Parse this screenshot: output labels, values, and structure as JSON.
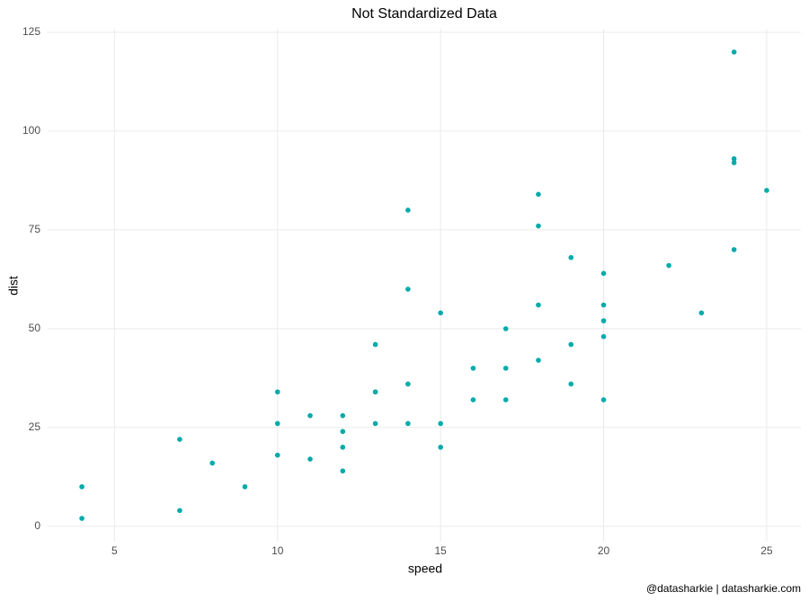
{
  "chart_data": {
    "type": "scatter",
    "title": "Not Standardized Data",
    "x_label": "speed",
    "y_label": "dist",
    "caption": "@datasharkie | datasharkie.com",
    "color": "#00AAAA",
    "grid": true,
    "x": [
      4,
      4,
      7,
      7,
      8,
      9,
      10,
      10,
      10,
      11,
      11,
      12,
      12,
      12,
      12,
      13,
      13,
      13,
      13,
      14,
      14,
      14,
      14,
      15,
      15,
      15,
      16,
      16,
      17,
      17,
      17,
      18,
      18,
      18,
      18,
      19,
      19,
      19,
      20,
      20,
      20,
      20,
      20,
      22,
      23,
      24,
      24,
      24,
      24,
      25
    ],
    "values": [
      2,
      10,
      4,
      22,
      16,
      10,
      18,
      26,
      34,
      17,
      28,
      14,
      20,
      24,
      28,
      26,
      34,
      34,
      46,
      26,
      36,
      60,
      80,
      20,
      26,
      54,
      32,
      40,
      32,
      40,
      50,
      42,
      56,
      76,
      84,
      36,
      46,
      68,
      32,
      48,
      52,
      56,
      64,
      66,
      54,
      70,
      92,
      93,
      120,
      85
    ],
    "xlim": [
      2.95,
      26.05
    ],
    "xticks": [
      5,
      10,
      15,
      20,
      25
    ],
    "ylim": [
      -3.9,
      125.9
    ],
    "yticks": [
      0,
      25,
      50,
      75,
      100,
      125
    ]
  }
}
